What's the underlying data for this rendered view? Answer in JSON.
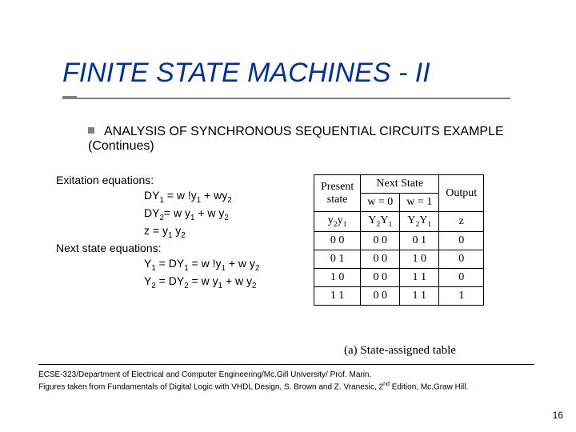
{
  "title": "FINITE STATE MACHINES - II",
  "bullet": "ANALYSIS OF SYNCHRONOUS SEQUENTIAL CIRCUITS EXAMPLE (Continues)",
  "equations": {
    "heading1": "Exitation equations:",
    "dy1_lhs": "DY",
    "dy1_sub": "1",
    "dy1_eq": " = w !y",
    "dy1_sub2": "1",
    "dy1_tail": " + wy",
    "dy1_sub3": "2",
    "dy2_lhs": "DY",
    "dy2_sub": "2",
    "dy2_eq": "= w y",
    "dy2_sub2": "1",
    "dy2_tail": " + w y",
    "dy2_sub3": "2",
    "z_lhs": "z = y",
    "z_sub1": "1",
    "z_mid": " y",
    "z_sub2": "2",
    "heading2": "Next state equations:",
    "ny1_a": "Y",
    "ny1_s1": "1",
    "ny1_b": " = DY",
    "ny1_s2": "1",
    "ny1_c": " = w !y",
    "ny1_s3": "1",
    "ny1_d": " + w y",
    "ny1_s4": "2",
    "ny2_a": "Y",
    "ny2_s1": "2",
    "ny2_b": " = DY",
    "ny2_s2": "2",
    "ny2_c": " = w y",
    "ny2_s3": "1",
    "ny2_d": " + w y",
    "ny2_s4": "2"
  },
  "table": {
    "h_present": "Present",
    "h_state": "state",
    "h_next": "Next State",
    "h_output": "Output",
    "h_w0": "w = 0",
    "h_w1": "w = 1",
    "h_y2y1_l": "y",
    "h_y2y1_2": "2",
    "h_y2y1_m": "y",
    "h_y2y1_1": "1",
    "h_Y2Y1_l": "Y",
    "h_Y2Y1_2": "2",
    "h_Y2Y1_m": "Y",
    "h_Y2Y1_1": "1",
    "h_z": "z",
    "rows": [
      {
        "ps": "0 0",
        "w0": "0 0",
        "w1": "0 1",
        "z": "0"
      },
      {
        "ps": "0 1",
        "w0": "0 0",
        "w1": "1 0",
        "z": "0"
      },
      {
        "ps": "1 0",
        "w0": "0 0",
        "w1": "1 1",
        "z": "0"
      },
      {
        "ps": "1 1",
        "w0": "0 0",
        "w1": "1 1",
        "z": "1"
      }
    ]
  },
  "caption": "(a) State-assigned table",
  "footer": {
    "line1": "ECSE-323/Department of Electrical and Computer Engineering/Mc.Gill University/ Prof. Marin.",
    "line2a": "Figures taken from Fundamentals of Digital Logic with VHDL Design, S. Brown and Z. Vranesic, 2",
    "line2sup": "nd",
    "line2b": " Edition, Mc.Graw Hill."
  },
  "pagenum": "16",
  "colors": {
    "title": "#003399",
    "underline": "#808080",
    "bullet_square": "#808080",
    "text": "#000000",
    "table_border": "#000000",
    "background": "#ffffff"
  }
}
